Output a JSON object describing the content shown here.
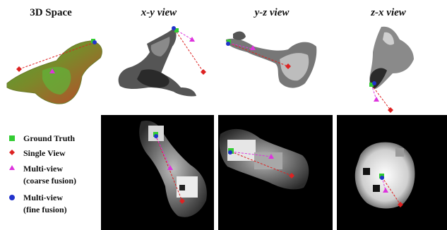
{
  "headers": {
    "space": "3D Space",
    "xy": "x-y view",
    "yz": "y-z view",
    "zx": "z-x view"
  },
  "legend": [
    {
      "label": "Ground Truth",
      "marker": "square",
      "color": "#33cc33"
    },
    {
      "label": "Single View",
      "marker": "diamond",
      "color": "#dd2222"
    },
    {
      "label": "Multi-view",
      "label2": "(coarse fusion)",
      "marker": "triangle",
      "color": "#dd33dd"
    },
    {
      "label": "Multi-view",
      "label2": "(fine fusion)",
      "marker": "circle",
      "color": "#2233cc"
    }
  ],
  "colors": {
    "ground_truth": "#33cc33",
    "single_view": "#dd2222",
    "coarse_fusion": "#dd33dd",
    "fine_fusion": "#2233cc",
    "panel_background": "#000000"
  }
}
